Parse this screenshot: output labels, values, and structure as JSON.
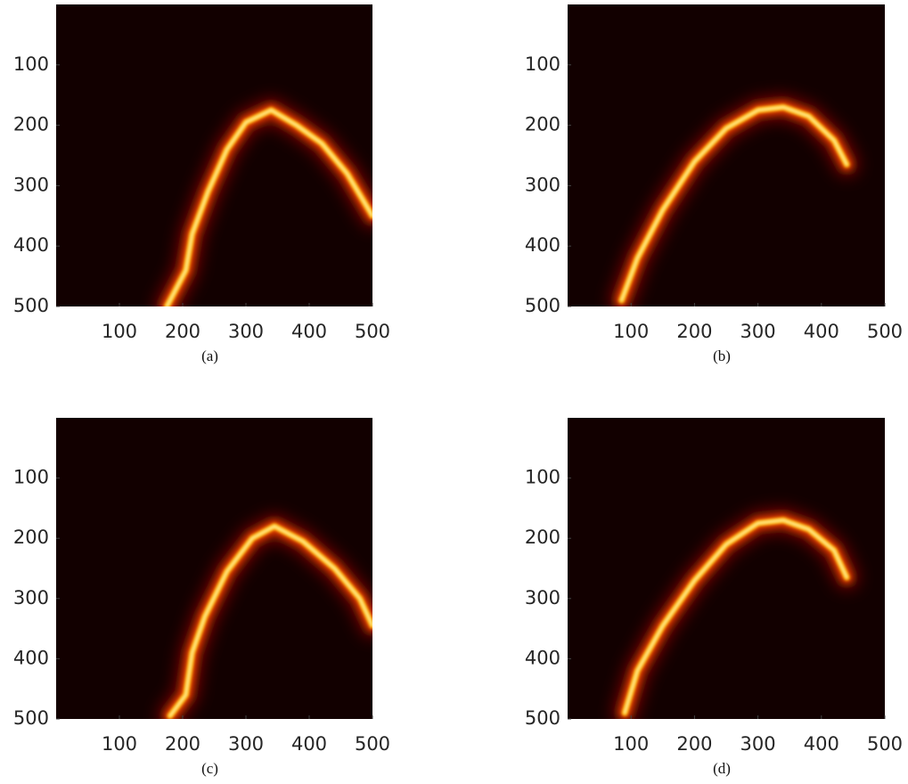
{
  "chart_data": [
    {
      "type": "heatmap",
      "caption": "(a)",
      "colormap": "hot",
      "reversed_y": true,
      "xlim": [
        0,
        500
      ],
      "ylim": [
        0,
        500
      ],
      "xticks": [
        100,
        200,
        300,
        400,
        500
      ],
      "yticks": [
        100,
        200,
        300,
        400,
        500
      ],
      "x": [
        175,
        205,
        215,
        240,
        270,
        300,
        340,
        380,
        420,
        460,
        500
      ],
      "y": [
        500,
        440,
        380,
        310,
        240,
        195,
        175,
        200,
        230,
        280,
        350
      ]
    },
    {
      "type": "heatmap",
      "caption": "(b)",
      "colormap": "hot",
      "reversed_y": true,
      "xlim": [
        0,
        500
      ],
      "ylim": [
        0,
        500
      ],
      "xticks": [
        100,
        200,
        300,
        400,
        500
      ],
      "yticks": [
        100,
        200,
        300,
        400,
        500
      ],
      "x": [
        85,
        110,
        150,
        200,
        250,
        300,
        340,
        380,
        420,
        440
      ],
      "y": [
        490,
        420,
        340,
        260,
        205,
        175,
        170,
        185,
        225,
        265
      ]
    },
    {
      "type": "heatmap",
      "caption": "(c)",
      "colormap": "hot",
      "reversed_y": true,
      "xlim": [
        0,
        500
      ],
      "ylim": [
        0,
        500
      ],
      "xticks": [
        100,
        200,
        300,
        400,
        500
      ],
      "yticks": [
        100,
        200,
        300,
        400,
        500
      ],
      "x": [
        180,
        205,
        215,
        235,
        270,
        310,
        345,
        390,
        440,
        480,
        500
      ],
      "y": [
        495,
        460,
        390,
        330,
        255,
        200,
        180,
        205,
        250,
        300,
        345
      ]
    },
    {
      "type": "heatmap",
      "caption": "(d)",
      "colormap": "hot",
      "reversed_y": true,
      "xlim": [
        0,
        500
      ],
      "ylim": [
        0,
        500
      ],
      "xticks": [
        100,
        200,
        300,
        400,
        500
      ],
      "yticks": [
        100,
        200,
        300,
        400,
        500
      ],
      "x": [
        90,
        110,
        150,
        200,
        250,
        300,
        340,
        380,
        420,
        440
      ],
      "y": [
        490,
        420,
        345,
        270,
        210,
        175,
        170,
        185,
        220,
        265
      ]
    }
  ]
}
